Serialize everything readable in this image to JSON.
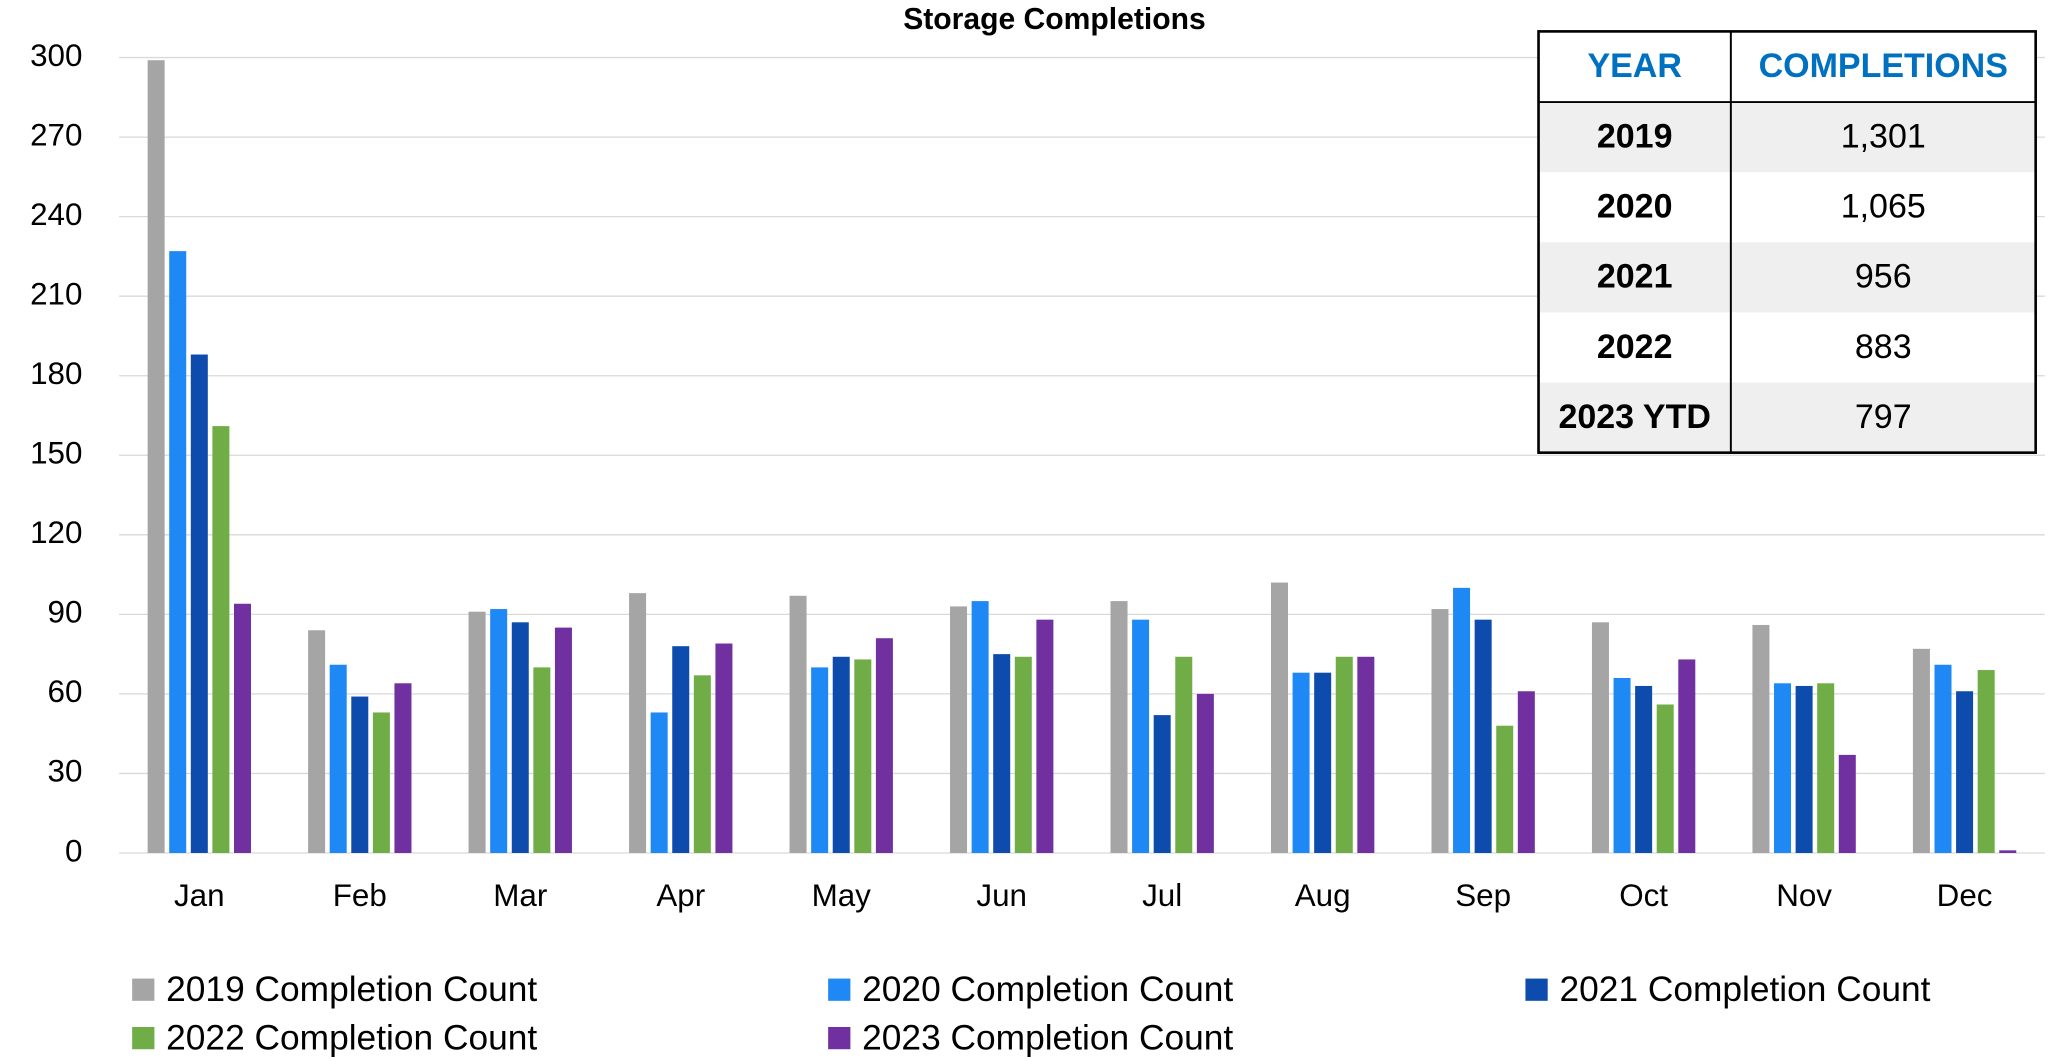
{
  "chart_data": {
    "type": "bar",
    "title": "Storage Completions",
    "categories": [
      "Jan",
      "Feb",
      "Mar",
      "Apr",
      "May",
      "Jun",
      "Jul",
      "Aug",
      "Sep",
      "Oct",
      "Nov",
      "Dec"
    ],
    "series": [
      {
        "name": "2019 Completion Count",
        "color": "#a5a5a5",
        "values": [
          299,
          84,
          91,
          98,
          97,
          93,
          95,
          102,
          92,
          87,
          86,
          77
        ]
      },
      {
        "name": "2020 Completion Count",
        "color": "#1e88f5",
        "values": [
          227,
          71,
          92,
          53,
          70,
          95,
          88,
          68,
          100,
          66,
          64,
          71
        ]
      },
      {
        "name": "2021 Completion Count",
        "color": "#0d4cad",
        "values": [
          188,
          59,
          87,
          78,
          74,
          75,
          52,
          68,
          88,
          63,
          63,
          61
        ]
      },
      {
        "name": "2022 Completion Count",
        "color": "#70ad47",
        "values": [
          161,
          53,
          70,
          67,
          73,
          74,
          74,
          74,
          48,
          56,
          64,
          69
        ]
      },
      {
        "name": "2023 Completion Count",
        "color": "#7030a0",
        "values": [
          94,
          64,
          85,
          79,
          81,
          88,
          60,
          74,
          61,
          73,
          37,
          1
        ]
      }
    ],
    "ylim": [
      0,
      300
    ],
    "yticks": [
      0,
      30,
      60,
      90,
      120,
      150,
      180,
      210,
      240,
      270,
      300
    ],
    "grid": true,
    "legend": "bottom",
    "table": {
      "headers": [
        "YEAR",
        "COMPLETIONS"
      ],
      "rows": [
        [
          "2019",
          "1,301"
        ],
        [
          "2020",
          "1,065"
        ],
        [
          "2021",
          "956"
        ],
        [
          "2022",
          "883"
        ],
        [
          "2023 YTD",
          "797"
        ]
      ]
    }
  }
}
